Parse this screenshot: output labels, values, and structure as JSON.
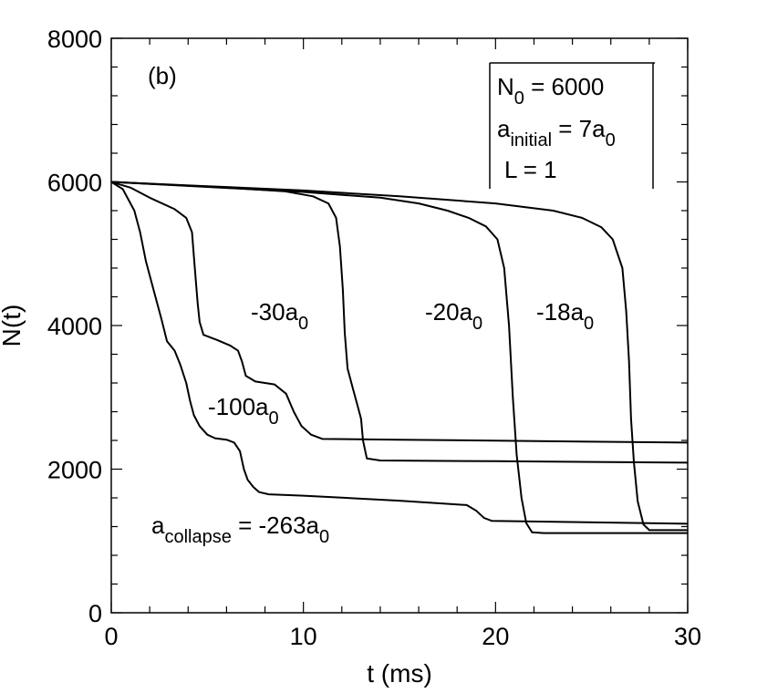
{
  "chart_data": {
    "type": "line",
    "panel_label": "(b)",
    "xlabel": "t (ms)",
    "ylabel": "N(t)",
    "xlim": [
      0,
      30
    ],
    "ylim": [
      0,
      8000
    ],
    "x_ticks": [
      0,
      10,
      20,
      30
    ],
    "y_ticks": [
      0,
      2000,
      4000,
      6000,
      8000
    ],
    "x_minor_step": 2,
    "y_minor_step": 400,
    "grid": false,
    "legend_box": {
      "line1_main": "N",
      "line1_sub": "0",
      "line1_rest": " = 6000",
      "line2_main": "a",
      "line2_sub": "initial",
      "line2_rest": " = 7a",
      "line2_sub2": "0",
      "line3": "L = 1"
    },
    "series": [
      {
        "name": "-18a0",
        "label_main": "-18a",
        "label_sub": "0",
        "points": [
          [
            0,
            6000
          ],
          [
            5,
            5940
          ],
          [
            10,
            5880
          ],
          [
            15,
            5800
          ],
          [
            20,
            5700
          ],
          [
            23,
            5600
          ],
          [
            24.5,
            5500
          ],
          [
            25.5,
            5370
          ],
          [
            26.1,
            5200
          ],
          [
            26.6,
            4800
          ],
          [
            26.8,
            4200
          ],
          [
            26.95,
            3500
          ],
          [
            27.05,
            2700
          ],
          [
            27.2,
            2100
          ],
          [
            27.4,
            1550
          ],
          [
            27.7,
            1230
          ],
          [
            28,
            1150
          ],
          [
            30,
            1150
          ]
        ]
      },
      {
        "name": "-20a0",
        "label_main": "-20a",
        "label_sub": "0",
        "points": [
          [
            0,
            6000
          ],
          [
            5,
            5930
          ],
          [
            10,
            5860
          ],
          [
            14,
            5780
          ],
          [
            16,
            5700
          ],
          [
            17.5,
            5600
          ],
          [
            18.6,
            5500
          ],
          [
            19.5,
            5380
          ],
          [
            20.1,
            5200
          ],
          [
            20.45,
            4800
          ],
          [
            20.7,
            4000
          ],
          [
            20.9,
            3000
          ],
          [
            21.1,
            2200
          ],
          [
            21.35,
            1600
          ],
          [
            21.6,
            1250
          ],
          [
            21.9,
            1120
          ],
          [
            22.5,
            1110
          ],
          [
            30,
            1110
          ]
        ]
      },
      {
        "name": "-30a0",
        "label_main": "-30a",
        "label_sub": "0",
        "points": [
          [
            0,
            6000
          ],
          [
            3,
            5960
          ],
          [
            6,
            5920
          ],
          [
            9,
            5870
          ],
          [
            10.5,
            5800
          ],
          [
            11.3,
            5700
          ],
          [
            11.7,
            5500
          ],
          [
            11.9,
            5100
          ],
          [
            12.05,
            4500
          ],
          [
            12.15,
            3900
          ],
          [
            12.3,
            3400
          ],
          [
            12.6,
            3100
          ],
          [
            12.8,
            2900
          ],
          [
            13.0,
            2700
          ],
          [
            13.1,
            2400
          ],
          [
            13.3,
            2150
          ],
          [
            14,
            2120
          ],
          [
            20,
            2110
          ],
          [
            30,
            2090
          ]
        ]
      },
      {
        "name": "-100a0",
        "label_main": "-100a",
        "label_sub": "0",
        "points": [
          [
            0,
            6000
          ],
          [
            1,
            5920
          ],
          [
            2,
            5780
          ],
          [
            3.3,
            5620
          ],
          [
            3.9,
            5500
          ],
          [
            4.2,
            5300
          ],
          [
            4.35,
            4800
          ],
          [
            4.5,
            4300
          ],
          [
            4.6,
            4050
          ],
          [
            4.8,
            3870
          ],
          [
            5.5,
            3800
          ],
          [
            6.2,
            3720
          ],
          [
            6.6,
            3650
          ],
          [
            6.8,
            3500
          ],
          [
            7.0,
            3300
          ],
          [
            7.5,
            3220
          ],
          [
            8.5,
            3180
          ],
          [
            9.1,
            3050
          ],
          [
            9.5,
            2800
          ],
          [
            9.9,
            2600
          ],
          [
            10.4,
            2480
          ],
          [
            11,
            2420
          ],
          [
            15,
            2410
          ],
          [
            30,
            2370
          ]
        ]
      },
      {
        "name": "acollapse = -263a0",
        "label_main": "a",
        "label_sub": "collapse",
        "label_rest": " = -263a",
        "label_sub2": "0",
        "points": [
          [
            0,
            6000
          ],
          [
            0.6,
            5900
          ],
          [
            1.2,
            5600
          ],
          [
            1.5,
            5300
          ],
          [
            1.8,
            4900
          ],
          [
            2.2,
            4500
          ],
          [
            2.6,
            4100
          ],
          [
            2.9,
            3780
          ],
          [
            3.3,
            3650
          ],
          [
            3.6,
            3450
          ],
          [
            3.9,
            3200
          ],
          [
            4.1,
            2950
          ],
          [
            4.3,
            2750
          ],
          [
            4.6,
            2600
          ],
          [
            5.0,
            2480
          ],
          [
            5.4,
            2430
          ],
          [
            6.0,
            2410
          ],
          [
            6.4,
            2370
          ],
          [
            6.7,
            2250
          ],
          [
            6.9,
            2000
          ],
          [
            7.1,
            1850
          ],
          [
            7.4,
            1750
          ],
          [
            7.7,
            1680
          ],
          [
            8.2,
            1650
          ],
          [
            10,
            1630
          ],
          [
            15,
            1560
          ],
          [
            18.5,
            1500
          ],
          [
            19.0,
            1420
          ],
          [
            19.4,
            1320
          ],
          [
            19.8,
            1280
          ],
          [
            30,
            1240
          ]
        ]
      }
    ]
  }
}
